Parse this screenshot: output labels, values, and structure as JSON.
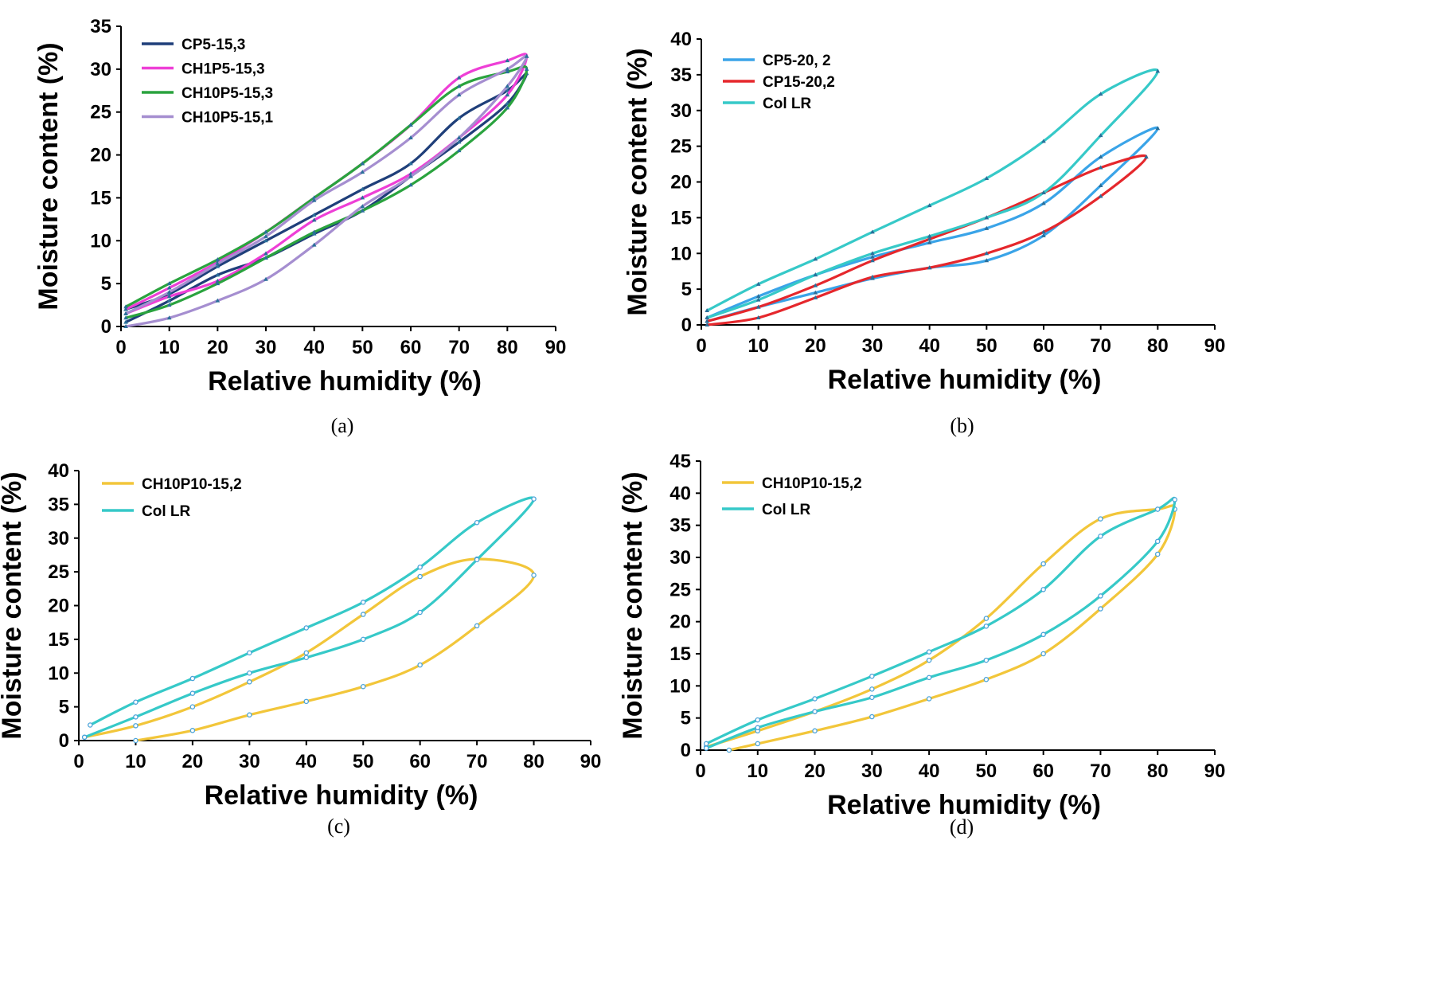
{
  "figure": {
    "panels": [
      "a",
      "b",
      "c",
      "d"
    ]
  },
  "chart_data": [
    {
      "id": "a",
      "type": "line",
      "caption": "(a)",
      "xlabel": "Relative humidity (%)",
      "ylabel": "Moisture content (%)",
      "xlim": [
        0,
        90
      ],
      "ylim": [
        0,
        35
      ],
      "xticks": [
        0,
        10,
        20,
        30,
        40,
        50,
        60,
        70,
        80,
        90
      ],
      "yticks": [
        0,
        5,
        10,
        15,
        20,
        25,
        30,
        35
      ],
      "legend_position": "top-left",
      "series": [
        {
          "name": "CP5-15,3",
          "color": "#1f3f7a",
          "points": [
            [
              1,
              0.5
            ],
            [
              10,
              3
            ],
            [
              20,
              6
            ],
            [
              30,
              8
            ],
            [
              40,
              10.8
            ],
            [
              50,
              13.5
            ],
            [
              60,
              17.5
            ],
            [
              70,
              21.5
            ],
            [
              80,
              26
            ],
            [
              84,
              29.5
            ],
            [
              80,
              27.5
            ],
            [
              70,
              24.3
            ],
            [
              60,
              19
            ],
            [
              50,
              16
            ],
            [
              40,
              13
            ],
            [
              30,
              10
            ],
            [
              20,
              7
            ],
            [
              10,
              3.8
            ],
            [
              1,
              2
            ]
          ]
        },
        {
          "name": "CH1P5-15,3",
          "color": "#ee3fd6",
          "points": [
            [
              1,
              1.5
            ],
            [
              10,
              3.5
            ],
            [
              20,
              5.3
            ],
            [
              30,
              8.5
            ],
            [
              40,
              12.4
            ],
            [
              50,
              15
            ],
            [
              60,
              17.8
            ],
            [
              70,
              22
            ],
            [
              80,
              27
            ],
            [
              84,
              31.5
            ],
            [
              80,
              31
            ],
            [
              70,
              29
            ],
            [
              60,
              23.5
            ],
            [
              50,
              19
            ],
            [
              40,
              15
            ],
            [
              30,
              11
            ],
            [
              20,
              7.5
            ],
            [
              10,
              4.5
            ],
            [
              1,
              2
            ]
          ]
        },
        {
          "name": "CH10P5-15,3",
          "color": "#2aa33e",
          "points": [
            [
              1,
              1
            ],
            [
              10,
              2.5
            ],
            [
              20,
              5
            ],
            [
              30,
              8
            ],
            [
              40,
              11
            ],
            [
              50,
              13.5
            ],
            [
              60,
              16.5
            ],
            [
              70,
              20.5
            ],
            [
              80,
              25.5
            ],
            [
              84,
              30
            ],
            [
              80,
              29.7
            ],
            [
              70,
              28
            ],
            [
              60,
              23.5
            ],
            [
              50,
              19
            ],
            [
              40,
              15
            ],
            [
              30,
              11
            ],
            [
              20,
              7.8
            ],
            [
              10,
              5
            ],
            [
              1,
              2.3
            ]
          ]
        },
        {
          "name": "CH10P5-15,1",
          "color": "#a58ed0",
          "points": [
            [
              1,
              0
            ],
            [
              10,
              1
            ],
            [
              20,
              3
            ],
            [
              30,
              5.5
            ],
            [
              40,
              9.5
            ],
            [
              50,
              14
            ],
            [
              60,
              17.5
            ],
            [
              70,
              22
            ],
            [
              80,
              28
            ],
            [
              84,
              31.5
            ],
            [
              80,
              30
            ],
            [
              70,
              27
            ],
            [
              60,
              22
            ],
            [
              50,
              18
            ],
            [
              40,
              14.7
            ],
            [
              30,
              10.5
            ],
            [
              20,
              7.3
            ],
            [
              10,
              4
            ],
            [
              1,
              1.5
            ]
          ]
        }
      ]
    },
    {
      "id": "b",
      "type": "line",
      "caption": "(b)",
      "xlabel": "Relative humidity (%)",
      "ylabel": "Moisture content (%)",
      "xlim": [
        0,
        90
      ],
      "ylim": [
        0,
        40
      ],
      "xticks": [
        0,
        10,
        20,
        30,
        40,
        50,
        60,
        70,
        80,
        90
      ],
      "yticks": [
        0,
        5,
        10,
        15,
        20,
        25,
        30,
        35,
        40
      ],
      "legend_position": "top-left",
      "series": [
        {
          "name": "CP5-20, 2",
          "color": "#3aa4e8",
          "points": [
            [
              1,
              0.5
            ],
            [
              10,
              2.5
            ],
            [
              20,
              4.5
            ],
            [
              30,
              6.5
            ],
            [
              40,
              8
            ],
            [
              50,
              9
            ],
            [
              60,
              12.5
            ],
            [
              70,
              19.5
            ],
            [
              80,
              27.5
            ],
            [
              70,
              23.5
            ],
            [
              60,
              17
            ],
            [
              50,
              13.5
            ],
            [
              40,
              11.5
            ],
            [
              30,
              9.5
            ],
            [
              20,
              7
            ],
            [
              10,
              4
            ],
            [
              1,
              1
            ]
          ]
        },
        {
          "name": "CP15-20,2",
          "color": "#e5272c",
          "points": [
            [
              1,
              0
            ],
            [
              10,
              1
            ],
            [
              20,
              3.8
            ],
            [
              30,
              6.7
            ],
            [
              40,
              8
            ],
            [
              50,
              10
            ],
            [
              60,
              13
            ],
            [
              70,
              18
            ],
            [
              78,
              23.5
            ],
            [
              70,
              22
            ],
            [
              60,
              18.5
            ],
            [
              50,
              15
            ],
            [
              40,
              12
            ],
            [
              30,
              9
            ],
            [
              20,
              5.5
            ],
            [
              10,
              2.5
            ],
            [
              1,
              0.5
            ]
          ]
        },
        {
          "name": "Col LR",
          "color": "#36c9c8",
          "points": [
            [
              1,
              1
            ],
            [
              10,
              3.5
            ],
            [
              20,
              7
            ],
            [
              30,
              10
            ],
            [
              40,
              12.4
            ],
            [
              50,
              15
            ],
            [
              60,
              18.5
            ],
            [
              70,
              26.5
            ],
            [
              80,
              35.5
            ],
            [
              70,
              32.3
            ],
            [
              60,
              25.7
            ],
            [
              50,
              20.5
            ],
            [
              40,
              16.7
            ],
            [
              30,
              13
            ],
            [
              20,
              9.2
            ],
            [
              10,
              5.7
            ],
            [
              1,
              2
            ]
          ]
        }
      ]
    },
    {
      "id": "c",
      "type": "line",
      "caption": "(c)",
      "xlabel": "Relative humidity (%)",
      "ylabel": "Moisture content (%)",
      "xlim": [
        0,
        90
      ],
      "ylim": [
        0,
        40
      ],
      "xticks": [
        0,
        10,
        20,
        30,
        40,
        50,
        60,
        70,
        80,
        90
      ],
      "yticks": [
        0,
        5,
        10,
        15,
        20,
        25,
        30,
        35,
        40
      ],
      "legend_position": "top-left",
      "series": [
        {
          "name": "CH10P10-15,2",
          "color": "#f2c63a",
          "points": [
            [
              10,
              0
            ],
            [
              20,
              1.5
            ],
            [
              30,
              3.8
            ],
            [
              40,
              5.8
            ],
            [
              50,
              8
            ],
            [
              60,
              11.2
            ],
            [
              70,
              17
            ],
            [
              80,
              24.5
            ],
            [
              70,
              26.9
            ],
            [
              60,
              24.3
            ],
            [
              50,
              18.7
            ],
            [
              40,
              13
            ],
            [
              30,
              8.7
            ],
            [
              20,
              5
            ],
            [
              10,
              2.2
            ],
            [
              1,
              0.5
            ]
          ]
        },
        {
          "name": "Col LR",
          "color": "#36c9c8",
          "points": [
            [
              1,
              0.5
            ],
            [
              10,
              3.5
            ],
            [
              20,
              7
            ],
            [
              30,
              10
            ],
            [
              40,
              12.3
            ],
            [
              50,
              15
            ],
            [
              60,
              19
            ],
            [
              70,
              26.8
            ],
            [
              80,
              35.8
            ],
            [
              70,
              32.3
            ],
            [
              60,
              25.7
            ],
            [
              50,
              20.5
            ],
            [
              40,
              16.7
            ],
            [
              30,
              13
            ],
            [
              20,
              9.2
            ],
            [
              10,
              5.7
            ],
            [
              2,
              2.3
            ]
          ]
        }
      ]
    },
    {
      "id": "d",
      "type": "line",
      "caption": "(d)",
      "xlabel": "Relative humidity (%)",
      "ylabel": "Moisture content (%)",
      "xlim": [
        0,
        90
      ],
      "ylim": [
        0,
        45
      ],
      "xticks": [
        0,
        10,
        20,
        30,
        40,
        50,
        60,
        70,
        80,
        90
      ],
      "yticks": [
        0,
        5,
        10,
        15,
        20,
        25,
        30,
        35,
        40,
        45
      ],
      "legend_position": "top-left",
      "series": [
        {
          "name": "CH10P10-15,2",
          "color": "#f2c63a",
          "points": [
            [
              5,
              0
            ],
            [
              10,
              1
            ],
            [
              20,
              3
            ],
            [
              30,
              5.2
            ],
            [
              40,
              8
            ],
            [
              50,
              11
            ],
            [
              60,
              15
            ],
            [
              70,
              22
            ],
            [
              80,
              30.5
            ],
            [
              83,
              37.5
            ],
            [
              80,
              37.5
            ],
            [
              70,
              36
            ],
            [
              60,
              29
            ],
            [
              50,
              20.5
            ],
            [
              40,
              14
            ],
            [
              30,
              9.5
            ],
            [
              20,
              6
            ],
            [
              10,
              3
            ],
            [
              1,
              0.5
            ]
          ]
        },
        {
          "name": "Col LR",
          "color": "#36c9c8",
          "points": [
            [
              1,
              0.3
            ],
            [
              10,
              3.5
            ],
            [
              20,
              6
            ],
            [
              30,
              8.2
            ],
            [
              40,
              11.3
            ],
            [
              50,
              14
            ],
            [
              60,
              18
            ],
            [
              70,
              24
            ],
            [
              80,
              32.5
            ],
            [
              83,
              39
            ],
            [
              80,
              37.5
            ],
            [
              70,
              33.3
            ],
            [
              60,
              25
            ],
            [
              50,
              19.3
            ],
            [
              40,
              15.3
            ],
            [
              30,
              11.5
            ],
            [
              20,
              8
            ],
            [
              10,
              4.7
            ],
            [
              1,
              1
            ]
          ]
        }
      ]
    }
  ]
}
